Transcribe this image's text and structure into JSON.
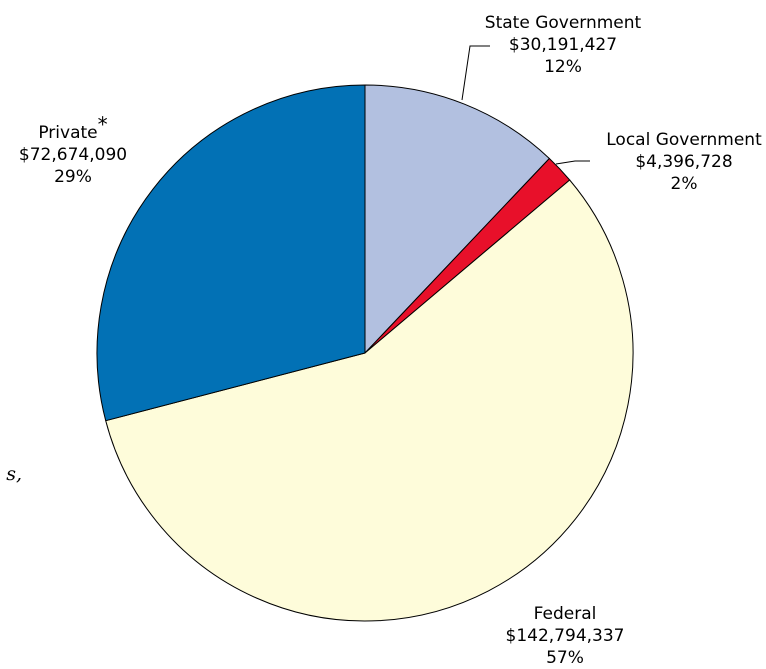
{
  "chart_data": {
    "type": "pie",
    "title": "",
    "slices": [
      {
        "label": "State Government",
        "value": 30191427,
        "value_text": "$30,191,427",
        "percent_text": "12%",
        "color": "#b2c0e0"
      },
      {
        "label": "Local Government",
        "value": 4396728,
        "value_text": "$4,396,728",
        "percent_text": "2%",
        "color": "#e8102a"
      },
      {
        "label": "Federal",
        "value": 142794337,
        "value_text": "$142,794,337",
        "percent_text": "57%",
        "color": "#fefcda"
      },
      {
        "label": "Private",
        "label_marker": "*",
        "value": 72674090,
        "value_text": "$72,674,090",
        "percent_text": "29%",
        "color": "#0271b5"
      }
    ],
    "start_angle_deg": 0,
    "direction": "clockwise",
    "outline_color": "#000000"
  },
  "edge_text": "s,"
}
